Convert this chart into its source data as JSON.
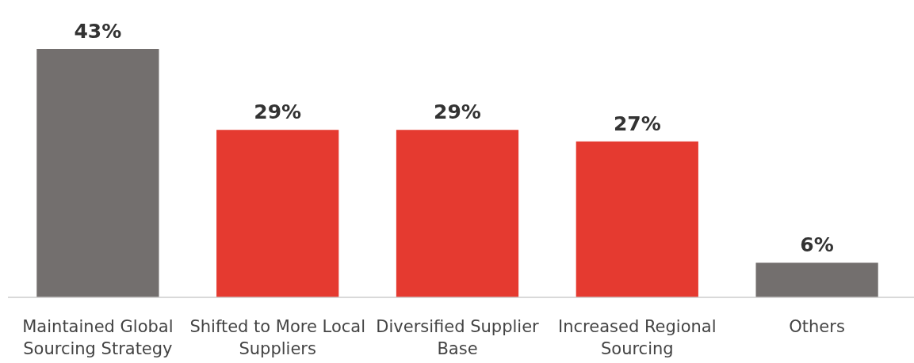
{
  "chart_data": {
    "type": "bar",
    "categories": [
      "Maintained Global Sourcing Strategy",
      "Shifted to More Local Suppliers",
      "Diversified Supplier Base",
      "Increased Regional Sourcing",
      "Others"
    ],
    "values": [
      43,
      29,
      29,
      27,
      6
    ],
    "colors": [
      "#736f6e",
      "#e53a30",
      "#e53a30",
      "#e53a30",
      "#736f6e"
    ],
    "value_labels": [
      "43%",
      "29%",
      "29%",
      "27%",
      "6%"
    ]
  }
}
